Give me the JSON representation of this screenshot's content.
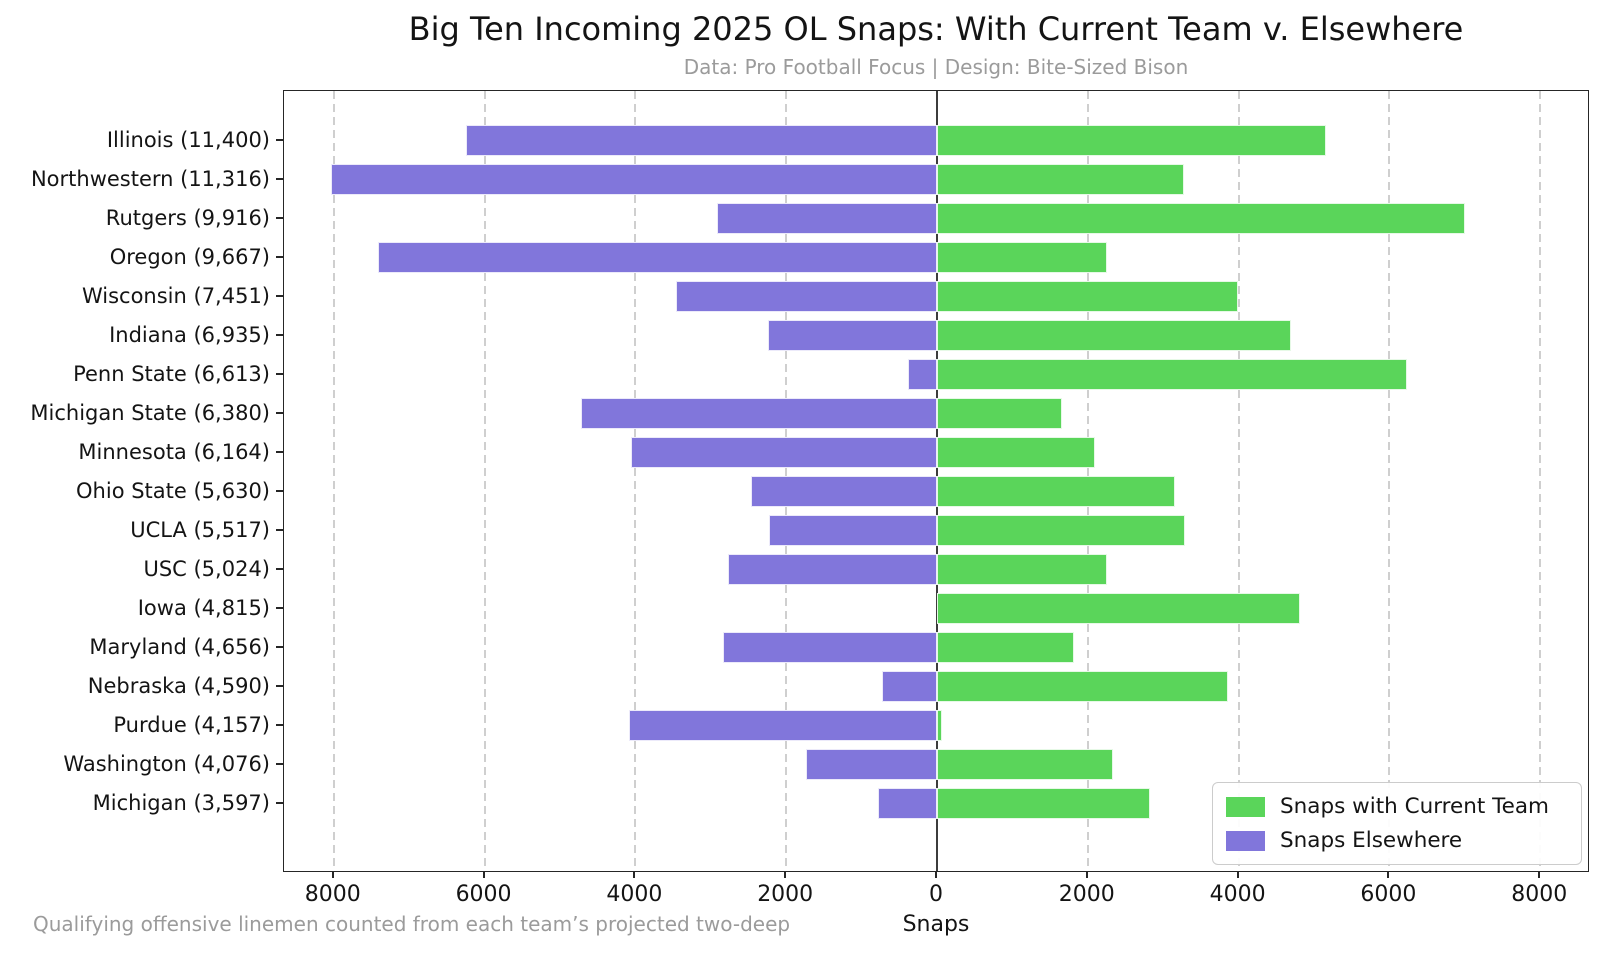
{
  "chart_data": {
    "type": "bar",
    "variant": "horizontal-diverging",
    "title": "Big Ten Incoming 2025 OL Snaps: With Current Team v. Elsewhere",
    "subtitle": "Data: Pro Football Focus | Design: Bite-Sized Bison",
    "xlabel": "Snaps",
    "footnote": "Qualifying offensive linemen counted from each team’s projected two-deep",
    "xlim": [
      -8660,
      8660
    ],
    "xticks": [
      -8000,
      -6000,
      -4000,
      -2000,
      0,
      2000,
      4000,
      6000,
      8000
    ],
    "xtick_labels": [
      "8000",
      "6000",
      "4000",
      "2000",
      "0",
      "2000",
      "4000",
      "6000",
      "8000"
    ],
    "grid": "vertical-dashed",
    "legend_position": "lower-right",
    "categories": [
      "Illinois (11,400)",
      "Northwestern (11,316)",
      "Rutgers (9,916)",
      "Oregon (9,667)",
      "Wisconsin (7,451)",
      "Indiana (6,935)",
      "Penn State (6,613)",
      "Michigan State (6,380)",
      "Minnesota (6,164)",
      "Ohio State (5,630)",
      "UCLA (5,517)",
      "USC (5,024)",
      "Iowa (4,815)",
      "Maryland (4,656)",
      "Nebraska (4,590)",
      "Purdue (4,157)",
      "Washington (4,076)",
      "Michigan (3,597)"
    ],
    "totals": [
      11400,
      11316,
      9916,
      9667,
      7451,
      6935,
      6613,
      6380,
      6164,
      5630,
      5517,
      5024,
      4815,
      4656,
      4590,
      4157,
      4076,
      3597
    ],
    "series": [
      {
        "name": "Snaps with Current Team",
        "color": "#5ad55a",
        "direction": "right",
        "values": [
          5160,
          3280,
          7000,
          2255,
          3990,
          4700,
          6230,
          1660,
          2100,
          3160,
          3290,
          2250,
          4815,
          1820,
          3860,
          70,
          2340,
          2820
        ]
      },
      {
        "name": "Snaps Elsewhere",
        "color": "#8176db",
        "direction": "left",
        "values": [
          6240,
          8036,
          2916,
          7412,
          3461,
          2235,
          383,
          4720,
          4064,
          2470,
          2227,
          2774,
          0,
          2836,
          730,
          4087,
          1736,
          777
        ]
      }
    ],
    "colors": {
      "current_team": "#5ad55a",
      "elsewhere": "#8176db",
      "grid": "#cfcfcf",
      "zero_line": "#3c3c3c",
      "axis_frame": "#262626",
      "muted_text": "#9b9b9b",
      "text": "#141414"
    }
  }
}
